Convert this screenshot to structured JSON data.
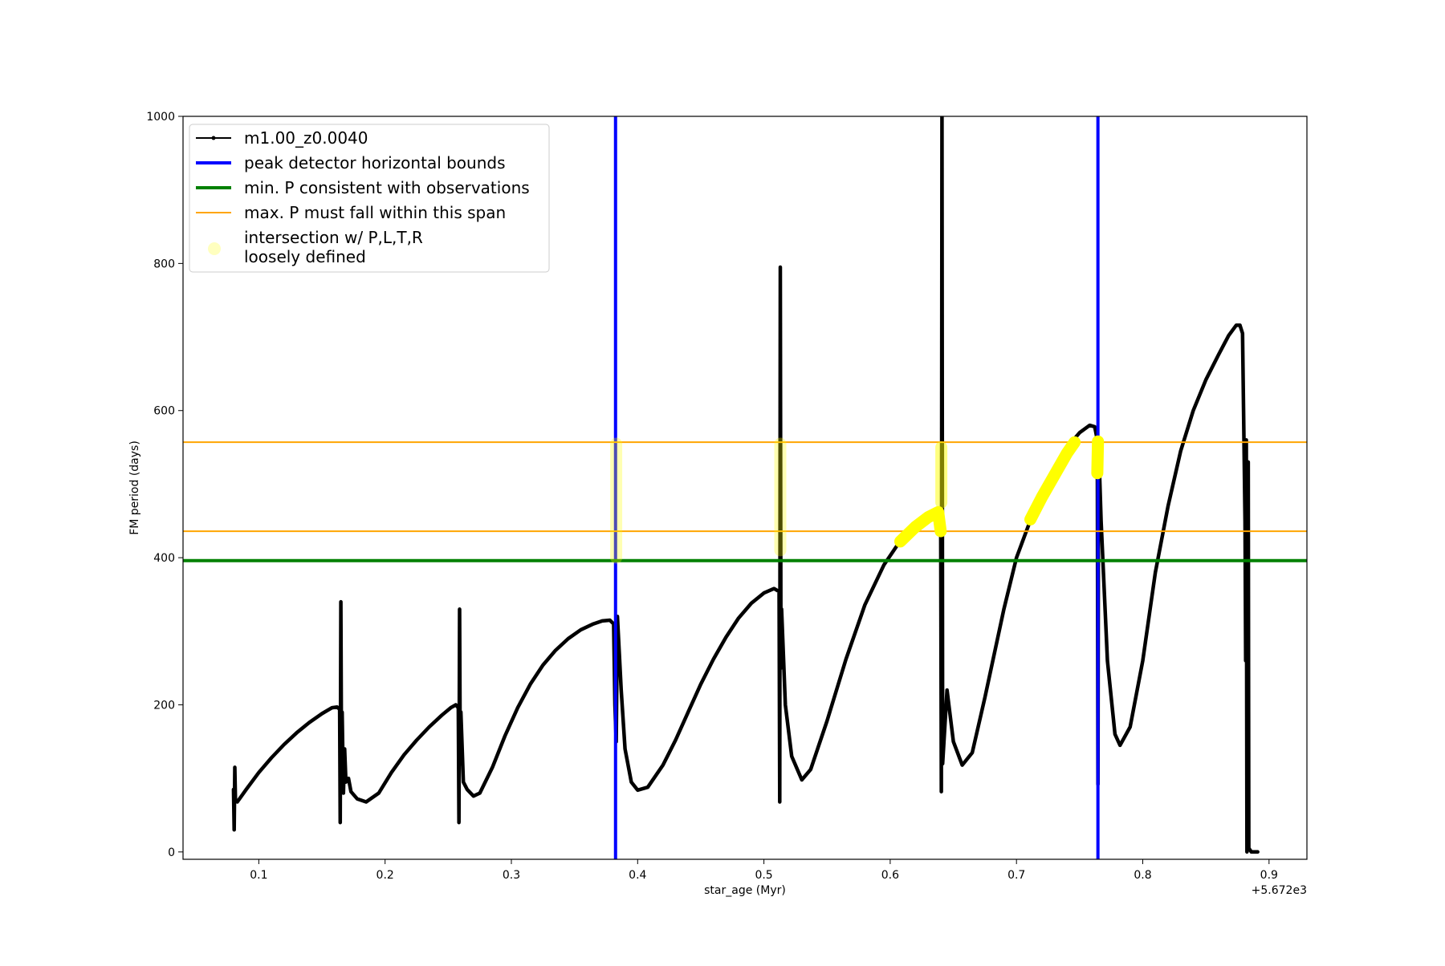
{
  "chart_data": {
    "type": "line",
    "title": "",
    "xlabel": "star_age (Myr)",
    "ylabel": "FM period (days)",
    "x_offset_label": "+5.672e3",
    "xlim": [
      0.04,
      0.93
    ],
    "ylim": [
      -10,
      1000
    ],
    "x_ticks": [
      0.1,
      0.2,
      0.3,
      0.4,
      0.5,
      0.6,
      0.7,
      0.8,
      0.9
    ],
    "x_tick_labels": [
      "0.1",
      "0.2",
      "0.3",
      "0.4",
      "0.5",
      "0.6",
      "0.7",
      "0.8",
      "0.9"
    ],
    "y_ticks": [
      0,
      200,
      400,
      600,
      800,
      1000
    ],
    "y_tick_labels": [
      "0",
      "200",
      "400",
      "600",
      "800",
      "1000"
    ],
    "grid": false,
    "legend_position": "top-left",
    "legend": [
      {
        "label": "m1.00_z0.0040",
        "color": "#000000",
        "kind": "line-marker"
      },
      {
        "label": "peak detector horizontal bounds",
        "color": "#0000ff",
        "kind": "thick-line"
      },
      {
        "label": "min. P consistent with observations",
        "color": "#008000",
        "kind": "thick-line"
      },
      {
        "label": "max. P must fall within this span",
        "color": "#ffa500",
        "kind": "thin-line"
      },
      {
        "label": "intersection w/ P,L,T,R\nloosely defined",
        "color": "#ffff00",
        "kind": "faint-dot"
      }
    ],
    "series": [
      {
        "name": "m1.00_z0.0040",
        "color": "#000000",
        "points": [
          [
            0.08,
            85
          ],
          [
            0.0805,
            30
          ],
          [
            0.081,
            115
          ],
          [
            0.0815,
            70
          ],
          [
            0.083,
            68
          ],
          [
            0.09,
            85
          ],
          [
            0.1,
            108
          ],
          [
            0.11,
            128
          ],
          [
            0.12,
            146
          ],
          [
            0.13,
            162
          ],
          [
            0.14,
            176
          ],
          [
            0.15,
            188
          ],
          [
            0.158,
            196
          ],
          [
            0.162,
            197
          ],
          [
            0.164,
            194
          ],
          [
            0.1645,
            40
          ],
          [
            0.165,
            340
          ],
          [
            0.1655,
            120
          ],
          [
            0.166,
            190
          ],
          [
            0.167,
            80
          ],
          [
            0.168,
            140
          ],
          [
            0.169,
            95
          ],
          [
            0.171,
            100
          ],
          [
            0.173,
            82
          ],
          [
            0.178,
            72
          ],
          [
            0.185,
            68
          ],
          [
            0.195,
            80
          ],
          [
            0.205,
            108
          ],
          [
            0.215,
            132
          ],
          [
            0.225,
            152
          ],
          [
            0.235,
            170
          ],
          [
            0.245,
            186
          ],
          [
            0.252,
            196
          ],
          [
            0.256,
            200
          ],
          [
            0.258,
            196
          ],
          [
            0.2585,
            40
          ],
          [
            0.259,
            330
          ],
          [
            0.2595,
            120
          ],
          [
            0.26,
            190
          ],
          [
            0.262,
            95
          ],
          [
            0.265,
            85
          ],
          [
            0.27,
            76
          ],
          [
            0.275,
            80
          ],
          [
            0.285,
            115
          ],
          [
            0.295,
            158
          ],
          [
            0.305,
            196
          ],
          [
            0.315,
            228
          ],
          [
            0.325,
            254
          ],
          [
            0.335,
            274
          ],
          [
            0.345,
            290
          ],
          [
            0.355,
            302
          ],
          [
            0.365,
            310
          ],
          [
            0.372,
            314
          ],
          [
            0.378,
            315
          ],
          [
            0.381,
            310
          ],
          [
            0.382,
            200
          ],
          [
            0.383,
            150
          ],
          [
            0.384,
            320
          ],
          [
            0.387,
            220
          ],
          [
            0.39,
            140
          ],
          [
            0.395,
            95
          ],
          [
            0.4,
            84
          ],
          [
            0.408,
            88
          ],
          [
            0.42,
            118
          ],
          [
            0.43,
            152
          ],
          [
            0.44,
            190
          ],
          [
            0.45,
            228
          ],
          [
            0.46,
            262
          ],
          [
            0.47,
            292
          ],
          [
            0.48,
            318
          ],
          [
            0.49,
            338
          ],
          [
            0.5,
            352
          ],
          [
            0.508,
            358
          ],
          [
            0.512,
            354
          ],
          [
            0.5125,
            68
          ],
          [
            0.513,
            795
          ],
          [
            0.5135,
            250
          ],
          [
            0.514,
            330
          ],
          [
            0.517,
            200
          ],
          [
            0.522,
            130
          ],
          [
            0.53,
            98
          ],
          [
            0.537,
            112
          ],
          [
            0.55,
            178
          ],
          [
            0.565,
            262
          ],
          [
            0.58,
            336
          ],
          [
            0.595,
            390
          ],
          [
            0.61,
            428
          ],
          [
            0.62,
            445
          ],
          [
            0.63,
            458
          ],
          [
            0.637,
            464
          ],
          [
            0.64,
            460
          ],
          [
            0.6405,
            82
          ],
          [
            0.641,
            1000
          ],
          [
            0.6415,
            120
          ],
          [
            0.645,
            220
          ],
          [
            0.65,
            150
          ],
          [
            0.657,
            118
          ],
          [
            0.665,
            135
          ],
          [
            0.675,
            210
          ],
          [
            0.69,
            330
          ],
          [
            0.7,
            400
          ],
          [
            0.71,
            446
          ],
          [
            0.72,
            482
          ],
          [
            0.73,
            518
          ],
          [
            0.74,
            550
          ],
          [
            0.75,
            570
          ],
          [
            0.758,
            580
          ],
          [
            0.762,
            578
          ],
          [
            0.764,
            560
          ],
          [
            0.7645,
            92
          ],
          [
            0.765,
            560
          ],
          [
            0.767,
            450
          ],
          [
            0.772,
            260
          ],
          [
            0.778,
            160
          ],
          [
            0.782,
            145
          ],
          [
            0.79,
            170
          ],
          [
            0.8,
            260
          ],
          [
            0.81,
            380
          ],
          [
            0.82,
            470
          ],
          [
            0.83,
            545
          ],
          [
            0.84,
            600
          ],
          [
            0.85,
            642
          ],
          [
            0.86,
            676
          ],
          [
            0.868,
            702
          ],
          [
            0.874,
            716
          ],
          [
            0.877,
            716
          ],
          [
            0.879,
            705
          ],
          [
            0.881,
            450
          ],
          [
            0.8815,
            260
          ],
          [
            0.882,
            560
          ],
          [
            0.8825,
            0
          ],
          [
            0.8835,
            530
          ],
          [
            0.884,
            5
          ],
          [
            0.886,
            0
          ],
          [
            0.891,
            0
          ]
        ]
      }
    ],
    "vertical_lines": [
      {
        "x": 0.3825,
        "color": "#0000ff"
      },
      {
        "x": 0.7645,
        "color": "#0000ff"
      }
    ],
    "horizontal_lines": [
      {
        "y": 396,
        "color": "#008000"
      },
      {
        "y": 436,
        "color": "#ffa500"
      },
      {
        "y": 557,
        "color": "#ffa500"
      }
    ],
    "highlight_segments": [
      {
        "points": [
          [
            0.383,
            400
          ],
          [
            0.383,
            555
          ]
        ],
        "color": "#ffff00",
        "opacity": 0.3
      },
      {
        "points": [
          [
            0.513,
            410
          ],
          [
            0.513,
            555
          ]
        ],
        "color": "#ffff00",
        "opacity": 0.3
      },
      {
        "points": [
          [
            0.6405,
            475
          ],
          [
            0.6405,
            550
          ]
        ],
        "color": "#ffff00",
        "opacity": 0.5
      },
      {
        "points": [
          [
            0.608,
            422
          ],
          [
            0.62,
            442
          ],
          [
            0.63,
            455
          ],
          [
            0.638,
            462
          ],
          [
            0.64,
            436
          ]
        ],
        "color": "#ffff00",
        "opacity": 1
      },
      {
        "points": [
          [
            0.711,
            452
          ],
          [
            0.72,
            482
          ],
          [
            0.73,
            512
          ],
          [
            0.74,
            542
          ],
          [
            0.746,
            557
          ]
        ],
        "color": "#ffff00",
        "opacity": 1
      },
      {
        "points": [
          [
            0.764,
            515
          ],
          [
            0.7645,
            558
          ]
        ],
        "color": "#ffff00",
        "opacity": 1
      }
    ]
  }
}
